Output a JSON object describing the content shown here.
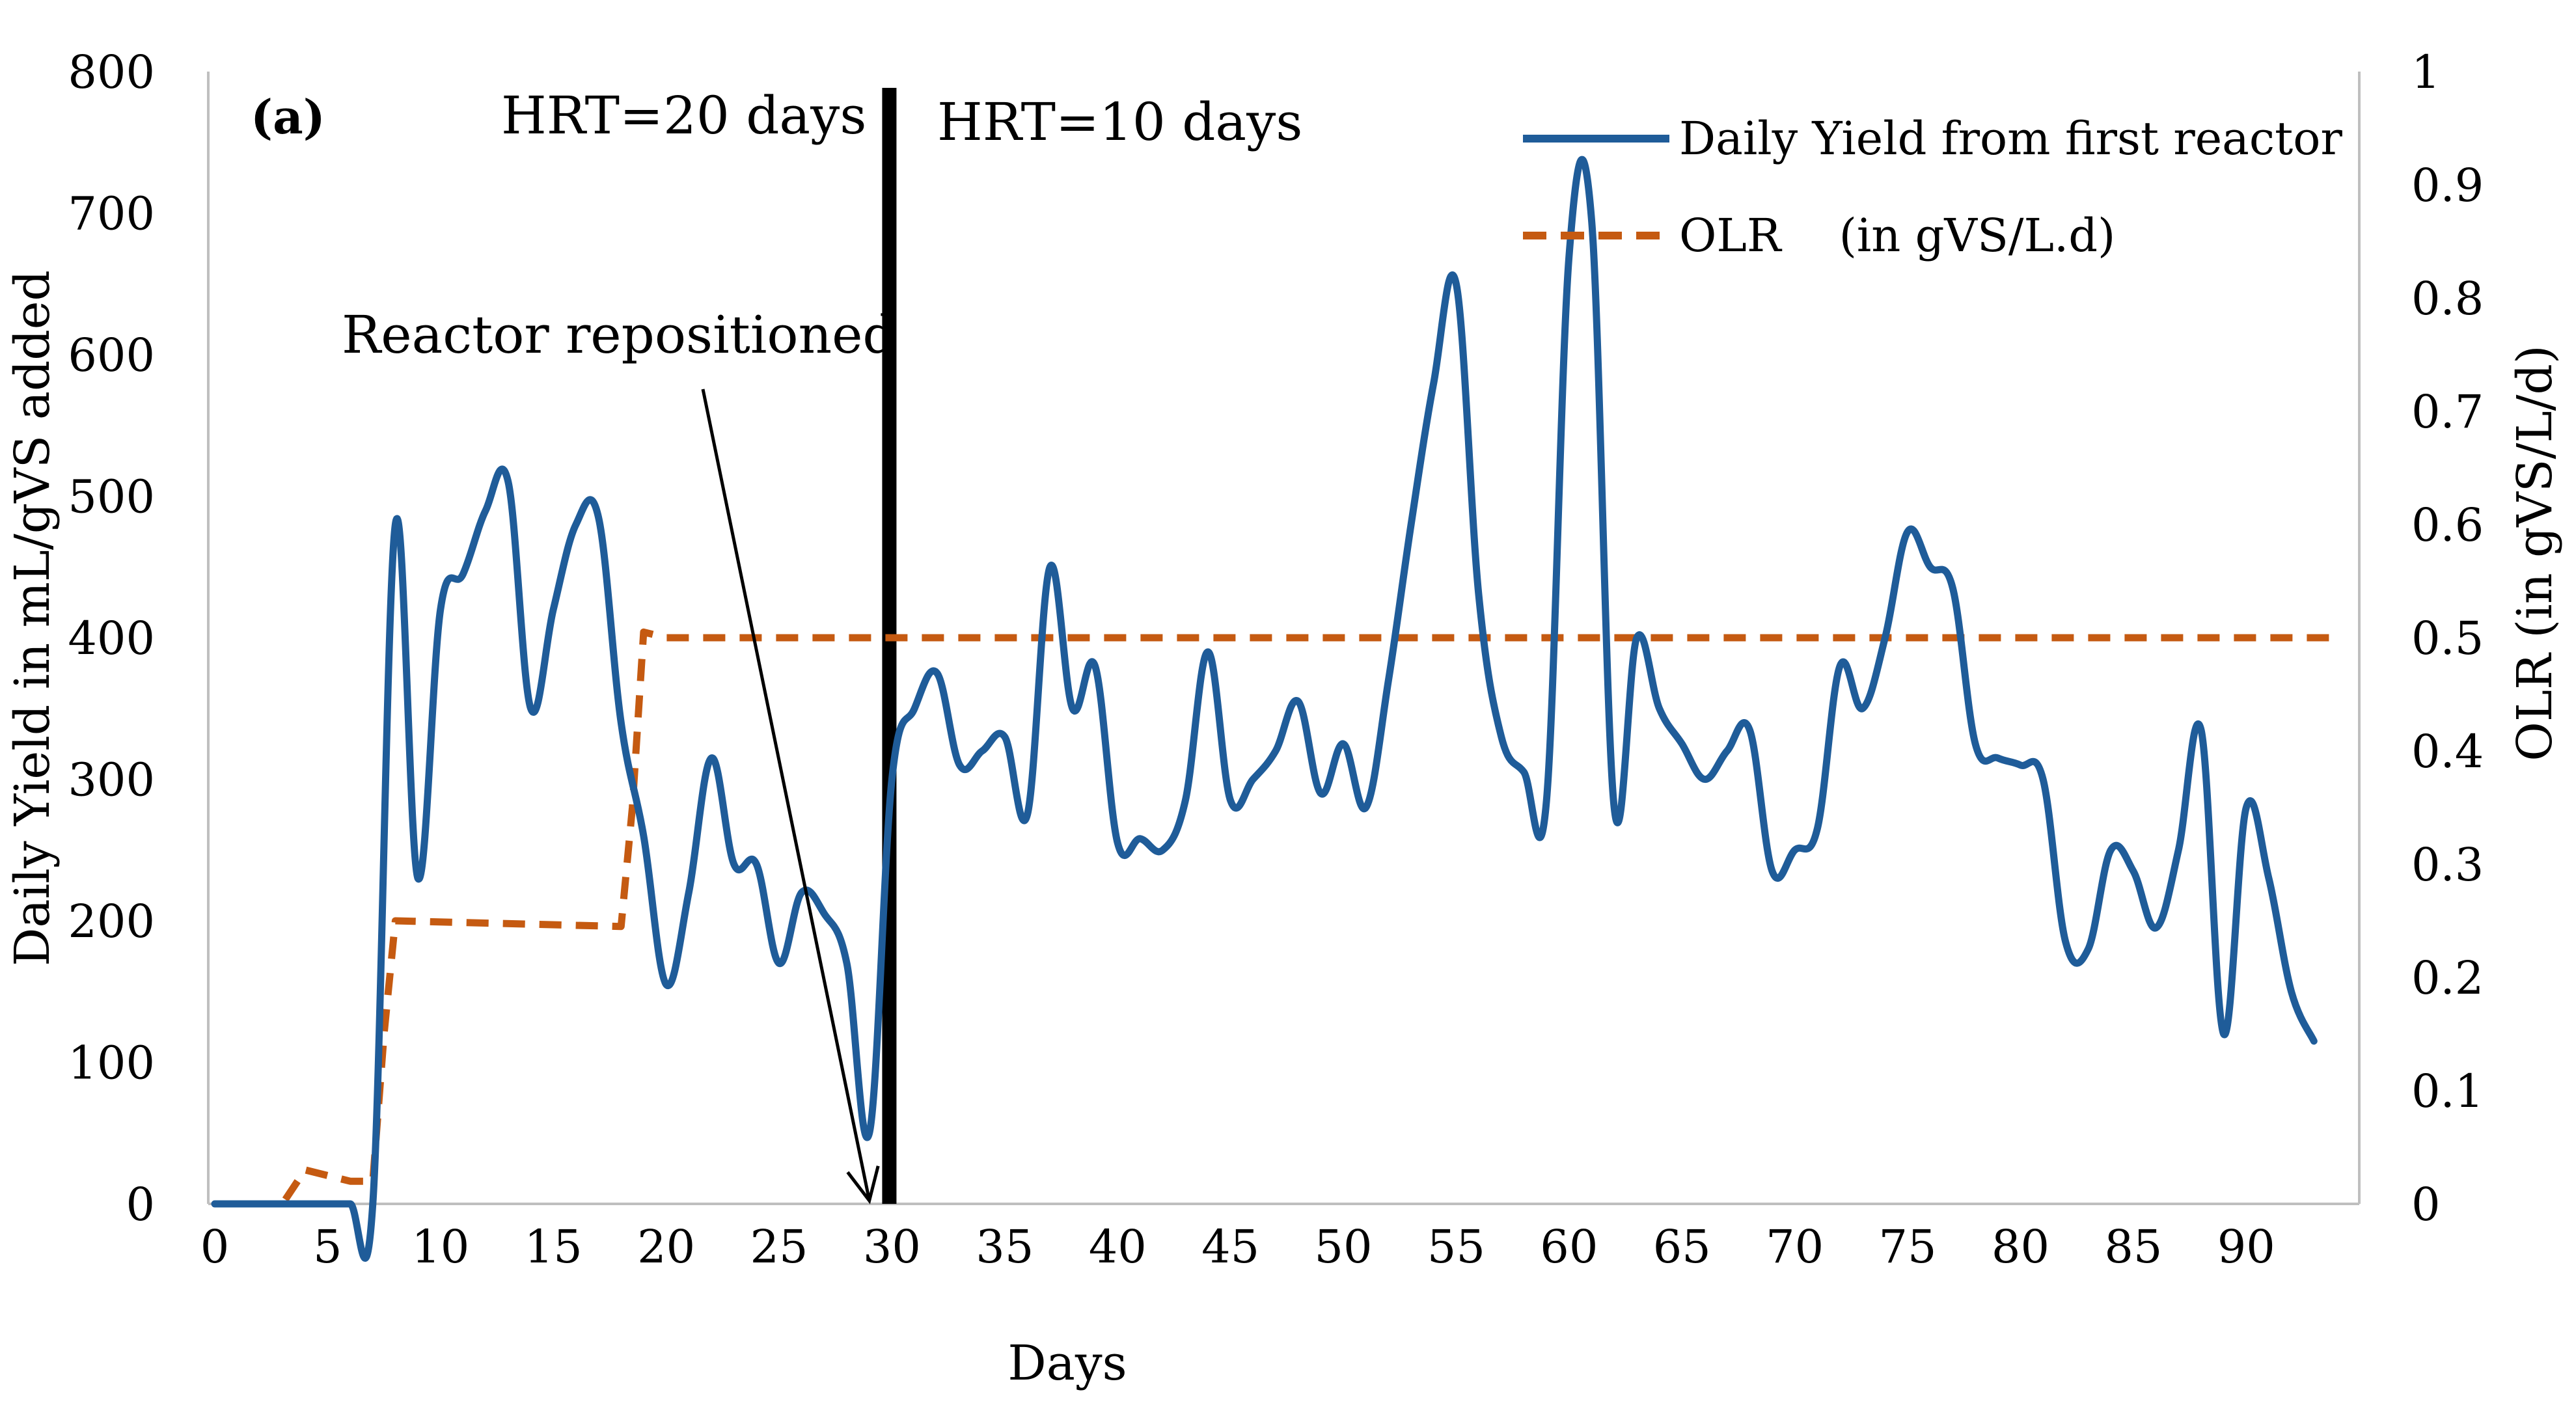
{
  "chart_data": {
    "type": "line",
    "panel_label": "(a)",
    "xlabel": "Days",
    "ylabel_left": "Daily Yield in mL/gVS added",
    "ylabel_right": "OLR (in gVS/L/d)",
    "xlim": [
      0,
      94
    ],
    "ylim_left": [
      0,
      800
    ],
    "ylim_right": [
      0,
      1
    ],
    "x_ticks": [
      0,
      5,
      10,
      15,
      20,
      25,
      30,
      35,
      40,
      45,
      50,
      55,
      60,
      65,
      70,
      75,
      80,
      85,
      90
    ],
    "y_ticks_left": [
      0,
      100,
      200,
      300,
      400,
      500,
      600,
      700,
      800
    ],
    "y_ticks_right": [
      "0",
      "0.1",
      "0.2",
      "0.3",
      "0.4",
      "0.5",
      "0.6",
      "0.7",
      "0.8",
      "0.9",
      "1"
    ],
    "grid": false,
    "legend_position": "top-right",
    "series": [
      {
        "name": "Daily Yield from first reactor",
        "axis": "left",
        "color": "#1f5c99",
        "style": "solid",
        "x": [
          0,
          1,
          2,
          3,
          4,
          5,
          6,
          7,
          8,
          9,
          10,
          11,
          12,
          13,
          14,
          15,
          16,
          17,
          18,
          19,
          20,
          21,
          22,
          23,
          24,
          25,
          26,
          27,
          28,
          29,
          30,
          31,
          32,
          33,
          34,
          35,
          36,
          37,
          38,
          39,
          40,
          41,
          42,
          43,
          44,
          45,
          46,
          47,
          48,
          49,
          50,
          51,
          52,
          53,
          54,
          55,
          56,
          57,
          58,
          59,
          60,
          61,
          62,
          63,
          64,
          65,
          66,
          67,
          68,
          69,
          70,
          71,
          72,
          73,
          74,
          75,
          76,
          77,
          78,
          79,
          80,
          81,
          82,
          83,
          84,
          85,
          86,
          87,
          88,
          89,
          90,
          91,
          92,
          93
        ],
        "y": [
          0,
          0,
          0,
          0,
          0,
          0,
          0,
          0,
          480,
          230,
          420,
          445,
          490,
          510,
          350,
          420,
          480,
          485,
          340,
          260,
          155,
          220,
          315,
          240,
          240,
          170,
          220,
          205,
          170,
          50,
          300,
          350,
          375,
          310,
          320,
          330,
          275,
          450,
          350,
          380,
          255,
          258,
          250,
          285,
          390,
          285,
          300,
          320,
          355,
          290,
          325,
          280,
          370,
          480,
          580,
          650,
          430,
          330,
          305,
          285,
          670,
          695,
          280,
          400,
          350,
          325,
          300,
          320,
          335,
          235,
          250,
          265,
          380,
          350,
          400,
          475,
          450,
          435,
          325,
          315,
          310,
          300,
          185,
          180,
          250,
          235,
          195,
          250,
          335,
          120,
          280,
          230,
          150,
          115
        ]
      },
      {
        "name": "OLR    (in gVS/L.d)",
        "axis": "right",
        "color": "#c55a11",
        "style": "dashed",
        "x": [
          0,
          3,
          4,
          6,
          7,
          7.5,
          8,
          18,
          18.5,
          19,
          20,
          94
        ],
        "y": [
          0,
          0,
          0.03,
          0.02,
          0.02,
          0.15,
          0.25,
          0.245,
          0.35,
          0.505,
          0.5,
          0.5
        ]
      }
    ],
    "annotations": [
      {
        "text": "HRT=20 days",
        "x": 20
      },
      {
        "text": "HRT=10 days",
        "x": 35
      },
      {
        "text": "Reactor repositioned",
        "x": 16,
        "arrow_to_x": 29
      }
    ],
    "vertical_line_x": 30
  }
}
